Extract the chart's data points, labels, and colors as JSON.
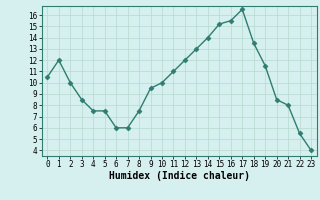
{
  "x": [
    0,
    1,
    2,
    3,
    4,
    5,
    6,
    7,
    8,
    9,
    10,
    11,
    12,
    13,
    14,
    15,
    16,
    17,
    18,
    19,
    20,
    21,
    22,
    23
  ],
  "y": [
    10.5,
    12.0,
    10.0,
    8.5,
    7.5,
    7.5,
    6.0,
    6.0,
    7.5,
    9.5,
    10.0,
    11.0,
    12.0,
    13.0,
    14.0,
    15.2,
    15.5,
    16.5,
    13.5,
    11.5,
    8.5,
    8.0,
    5.5,
    4.0
  ],
  "xlabel": "Humidex (Indice chaleur)",
  "line_color": "#2e7d6e",
  "marker": "D",
  "marker_size": 2.5,
  "bg_color": "#d6f0f0",
  "grid_color": "#b8d8d0",
  "xlim": [
    -0.5,
    23.5
  ],
  "ylim": [
    3.5,
    16.8
  ],
  "yticks": [
    4,
    5,
    6,
    7,
    8,
    9,
    10,
    11,
    12,
    13,
    14,
    15,
    16
  ],
  "xtick_labels": [
    "0",
    "1",
    "2",
    "3",
    "4",
    "5",
    "6",
    "7",
    "8",
    "9",
    "10",
    "11",
    "12",
    "13",
    "14",
    "15",
    "16",
    "17",
    "18",
    "19",
    "20",
    "21",
    "22",
    "23"
  ],
  "tick_fontsize": 5.5,
  "xlabel_fontsize": 7.0,
  "line_width": 1.0
}
